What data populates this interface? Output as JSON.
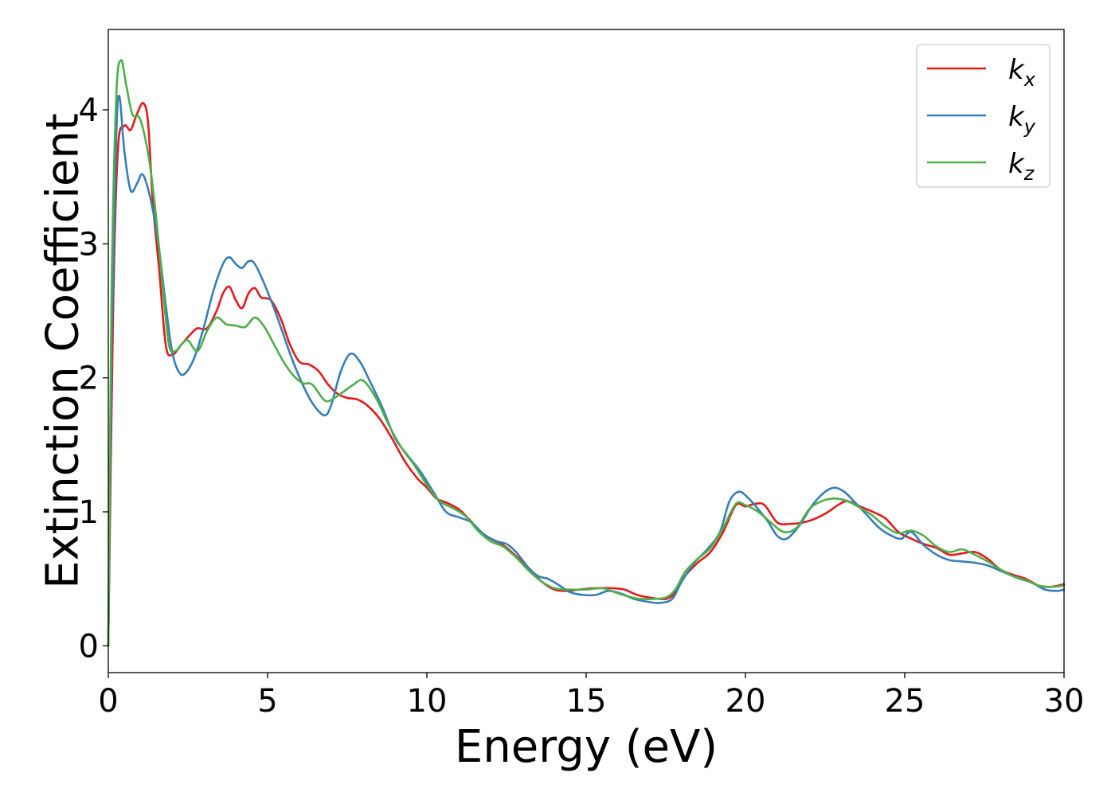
{
  "chart_data": {
    "type": "line",
    "xlabel": "Energy (eV)",
    "ylabel": "Extinction Coefficient",
    "xlim": [
      0,
      30
    ],
    "ylim": [
      -0.2,
      4.6
    ],
    "xticks": [
      0,
      5,
      10,
      15,
      20,
      25,
      30
    ],
    "yticks": [
      0,
      1,
      2,
      3,
      4
    ],
    "grid": false,
    "legend_position": "top-right",
    "series": [
      {
        "name": "k_x",
        "legend_base": "k",
        "legend_sub": "x",
        "color": "#e41a1c",
        "points": [
          [
            0,
            0
          ],
          [
            0.15,
            2.5
          ],
          [
            0.3,
            3.7
          ],
          [
            0.5,
            3.88
          ],
          [
            0.7,
            3.85
          ],
          [
            0.9,
            3.97
          ],
          [
            1.1,
            4.05
          ],
          [
            1.25,
            3.9
          ],
          [
            1.4,
            3.3
          ],
          [
            1.6,
            2.8
          ],
          [
            1.8,
            2.25
          ],
          [
            2.0,
            2.17
          ],
          [
            2.3,
            2.25
          ],
          [
            2.6,
            2.33
          ],
          [
            2.8,
            2.37
          ],
          [
            3.1,
            2.37
          ],
          [
            3.4,
            2.5
          ],
          [
            3.6,
            2.63
          ],
          [
            3.8,
            2.68
          ],
          [
            4.0,
            2.58
          ],
          [
            4.2,
            2.52
          ],
          [
            4.4,
            2.63
          ],
          [
            4.6,
            2.67
          ],
          [
            4.8,
            2.6
          ],
          [
            5.1,
            2.58
          ],
          [
            5.4,
            2.45
          ],
          [
            5.7,
            2.25
          ],
          [
            6.0,
            2.12
          ],
          [
            6.3,
            2.1
          ],
          [
            6.6,
            2.05
          ],
          [
            6.9,
            1.95
          ],
          [
            7.2,
            1.88
          ],
          [
            7.5,
            1.85
          ],
          [
            7.8,
            1.84
          ],
          [
            8.1,
            1.8
          ],
          [
            8.5,
            1.7
          ],
          [
            8.9,
            1.55
          ],
          [
            9.3,
            1.38
          ],
          [
            9.7,
            1.25
          ],
          [
            10.0,
            1.18
          ],
          [
            10.3,
            1.1
          ],
          [
            10.6,
            1.07
          ],
          [
            11.0,
            1.02
          ],
          [
            11.3,
            0.95
          ],
          [
            11.7,
            0.85
          ],
          [
            12.0,
            0.8
          ],
          [
            12.4,
            0.75
          ],
          [
            12.8,
            0.67
          ],
          [
            13.2,
            0.58
          ],
          [
            13.6,
            0.48
          ],
          [
            14.0,
            0.42
          ],
          [
            14.4,
            0.41
          ],
          [
            14.8,
            0.42
          ],
          [
            15.3,
            0.43
          ],
          [
            15.8,
            0.43
          ],
          [
            16.2,
            0.42
          ],
          [
            16.6,
            0.38
          ],
          [
            17.0,
            0.36
          ],
          [
            17.5,
            0.35
          ],
          [
            17.8,
            0.4
          ],
          [
            18.1,
            0.52
          ],
          [
            18.5,
            0.62
          ],
          [
            18.9,
            0.7
          ],
          [
            19.3,
            0.85
          ],
          [
            19.7,
            1.05
          ],
          [
            20.0,
            1.04
          ],
          [
            20.3,
            1.06
          ],
          [
            20.6,
            1.05
          ],
          [
            21.0,
            0.92
          ],
          [
            21.4,
            0.91
          ],
          [
            21.8,
            0.92
          ],
          [
            22.2,
            0.95
          ],
          [
            22.6,
            1.0
          ],
          [
            22.9,
            1.05
          ],
          [
            23.2,
            1.08
          ],
          [
            23.6,
            1.04
          ],
          [
            24.0,
            1.0
          ],
          [
            24.4,
            0.95
          ],
          [
            24.8,
            0.85
          ],
          [
            25.2,
            0.8
          ],
          [
            25.6,
            0.76
          ],
          [
            26.0,
            0.73
          ],
          [
            26.4,
            0.68
          ],
          [
            26.8,
            0.69
          ],
          [
            27.2,
            0.7
          ],
          [
            27.6,
            0.65
          ],
          [
            28.0,
            0.57
          ],
          [
            28.4,
            0.53
          ],
          [
            28.8,
            0.5
          ],
          [
            29.2,
            0.45
          ],
          [
            29.6,
            0.44
          ],
          [
            30.0,
            0.46
          ]
        ]
      },
      {
        "name": "k_y",
        "legend_base": "k",
        "legend_sub": "y",
        "color": "#377eb8",
        "points": [
          [
            0,
            0
          ],
          [
            0.1,
            2.2
          ],
          [
            0.25,
            3.8
          ],
          [
            0.35,
            4.1
          ],
          [
            0.5,
            3.7
          ],
          [
            0.7,
            3.4
          ],
          [
            0.9,
            3.45
          ],
          [
            1.05,
            3.52
          ],
          [
            1.2,
            3.45
          ],
          [
            1.4,
            3.25
          ],
          [
            1.6,
            2.95
          ],
          [
            1.8,
            2.55
          ],
          [
            2.0,
            2.2
          ],
          [
            2.2,
            2.05
          ],
          [
            2.4,
            2.03
          ],
          [
            2.7,
            2.15
          ],
          [
            3.0,
            2.38
          ],
          [
            3.3,
            2.65
          ],
          [
            3.6,
            2.85
          ],
          [
            3.8,
            2.9
          ],
          [
            4.0,
            2.85
          ],
          [
            4.2,
            2.82
          ],
          [
            4.4,
            2.87
          ],
          [
            4.6,
            2.85
          ],
          [
            4.9,
            2.7
          ],
          [
            5.2,
            2.52
          ],
          [
            5.5,
            2.32
          ],
          [
            5.8,
            2.12
          ],
          [
            6.2,
            1.9
          ],
          [
            6.5,
            1.78
          ],
          [
            6.8,
            1.72
          ],
          [
            7.0,
            1.8
          ],
          [
            7.3,
            2.05
          ],
          [
            7.6,
            2.18
          ],
          [
            7.9,
            2.12
          ],
          [
            8.2,
            1.98
          ],
          [
            8.6,
            1.78
          ],
          [
            9.0,
            1.55
          ],
          [
            9.4,
            1.42
          ],
          [
            9.8,
            1.3
          ],
          [
            10.2,
            1.15
          ],
          [
            10.6,
            1.0
          ],
          [
            11.0,
            0.96
          ],
          [
            11.4,
            0.92
          ],
          [
            11.8,
            0.83
          ],
          [
            12.2,
            0.78
          ],
          [
            12.5,
            0.76
          ],
          [
            12.8,
            0.7
          ],
          [
            13.2,
            0.58
          ],
          [
            13.5,
            0.52
          ],
          [
            13.8,
            0.5
          ],
          [
            14.1,
            0.46
          ],
          [
            14.5,
            0.4
          ],
          [
            14.9,
            0.38
          ],
          [
            15.3,
            0.38
          ],
          [
            15.7,
            0.41
          ],
          [
            16.1,
            0.39
          ],
          [
            16.5,
            0.35
          ],
          [
            16.9,
            0.33
          ],
          [
            17.3,
            0.32
          ],
          [
            17.7,
            0.35
          ],
          [
            18.0,
            0.48
          ],
          [
            18.4,
            0.62
          ],
          [
            18.8,
            0.72
          ],
          [
            19.2,
            0.85
          ],
          [
            19.5,
            1.08
          ],
          [
            19.8,
            1.15
          ],
          [
            20.1,
            1.1
          ],
          [
            20.4,
            1.02
          ],
          [
            20.7,
            0.93
          ],
          [
            21.0,
            0.82
          ],
          [
            21.3,
            0.8
          ],
          [
            21.7,
            0.9
          ],
          [
            22.1,
            1.05
          ],
          [
            22.5,
            1.15
          ],
          [
            22.8,
            1.18
          ],
          [
            23.1,
            1.15
          ],
          [
            23.4,
            1.08
          ],
          [
            23.8,
            0.98
          ],
          [
            24.2,
            0.88
          ],
          [
            24.6,
            0.82
          ],
          [
            24.9,
            0.8
          ],
          [
            25.2,
            0.85
          ],
          [
            25.6,
            0.75
          ],
          [
            26.0,
            0.68
          ],
          [
            26.4,
            0.64
          ],
          [
            26.8,
            0.63
          ],
          [
            27.2,
            0.62
          ],
          [
            27.6,
            0.6
          ],
          [
            28.0,
            0.56
          ],
          [
            28.5,
            0.51
          ],
          [
            29.0,
            0.47
          ],
          [
            29.4,
            0.42
          ],
          [
            29.8,
            0.41
          ],
          [
            30.0,
            0.42
          ]
        ]
      },
      {
        "name": "k_z",
        "legend_base": "k",
        "legend_sub": "z",
        "color": "#4daf4a",
        "points": [
          [
            0,
            0
          ],
          [
            0.1,
            2.6
          ],
          [
            0.25,
            4.1
          ],
          [
            0.4,
            4.37
          ],
          [
            0.55,
            4.2
          ],
          [
            0.75,
            3.97
          ],
          [
            0.95,
            3.95
          ],
          [
            1.1,
            3.85
          ],
          [
            1.3,
            3.6
          ],
          [
            1.5,
            3.2
          ],
          [
            1.7,
            2.7
          ],
          [
            1.9,
            2.25
          ],
          [
            2.1,
            2.2
          ],
          [
            2.3,
            2.25
          ],
          [
            2.5,
            2.28
          ],
          [
            2.8,
            2.2
          ],
          [
            3.1,
            2.35
          ],
          [
            3.4,
            2.45
          ],
          [
            3.7,
            2.4
          ],
          [
            4.0,
            2.39
          ],
          [
            4.3,
            2.38
          ],
          [
            4.6,
            2.45
          ],
          [
            4.9,
            2.38
          ],
          [
            5.2,
            2.25
          ],
          [
            5.5,
            2.12
          ],
          [
            5.8,
            2.02
          ],
          [
            6.1,
            1.96
          ],
          [
            6.4,
            1.95
          ],
          [
            6.8,
            1.83
          ],
          [
            7.1,
            1.85
          ],
          [
            7.4,
            1.9
          ],
          [
            7.7,
            1.95
          ],
          [
            8.0,
            1.98
          ],
          [
            8.4,
            1.85
          ],
          [
            8.8,
            1.65
          ],
          [
            9.2,
            1.48
          ],
          [
            9.6,
            1.35
          ],
          [
            10.0,
            1.2
          ],
          [
            10.4,
            1.08
          ],
          [
            10.8,
            1.03
          ],
          [
            11.2,
            0.97
          ],
          [
            11.6,
            0.86
          ],
          [
            12.0,
            0.78
          ],
          [
            12.4,
            0.74
          ],
          [
            12.8,
            0.66
          ],
          [
            13.2,
            0.56
          ],
          [
            13.6,
            0.48
          ],
          [
            14.0,
            0.43
          ],
          [
            14.5,
            0.42
          ],
          [
            15.0,
            0.42
          ],
          [
            15.5,
            0.43
          ],
          [
            15.9,
            0.4
          ],
          [
            16.3,
            0.37
          ],
          [
            16.7,
            0.35
          ],
          [
            17.1,
            0.35
          ],
          [
            17.5,
            0.36
          ],
          [
            17.8,
            0.42
          ],
          [
            18.1,
            0.55
          ],
          [
            18.5,
            0.65
          ],
          [
            18.9,
            0.73
          ],
          [
            19.3,
            0.88
          ],
          [
            19.7,
            1.06
          ],
          [
            20.0,
            1.05
          ],
          [
            20.4,
            1.0
          ],
          [
            20.8,
            0.92
          ],
          [
            21.2,
            0.85
          ],
          [
            21.6,
            0.88
          ],
          [
            22.0,
            1.02
          ],
          [
            22.4,
            1.08
          ],
          [
            22.8,
            1.1
          ],
          [
            23.2,
            1.08
          ],
          [
            23.6,
            1.03
          ],
          [
            24.0,
            0.97
          ],
          [
            24.4,
            0.89
          ],
          [
            24.8,
            0.84
          ],
          [
            25.2,
            0.86
          ],
          [
            25.6,
            0.82
          ],
          [
            26.0,
            0.74
          ],
          [
            26.4,
            0.7
          ],
          [
            26.8,
            0.72
          ],
          [
            27.2,
            0.68
          ],
          [
            27.6,
            0.63
          ],
          [
            28.0,
            0.57
          ],
          [
            28.4,
            0.52
          ],
          [
            28.8,
            0.49
          ],
          [
            29.2,
            0.45
          ],
          [
            29.6,
            0.44
          ],
          [
            30.0,
            0.45
          ]
        ]
      }
    ]
  }
}
